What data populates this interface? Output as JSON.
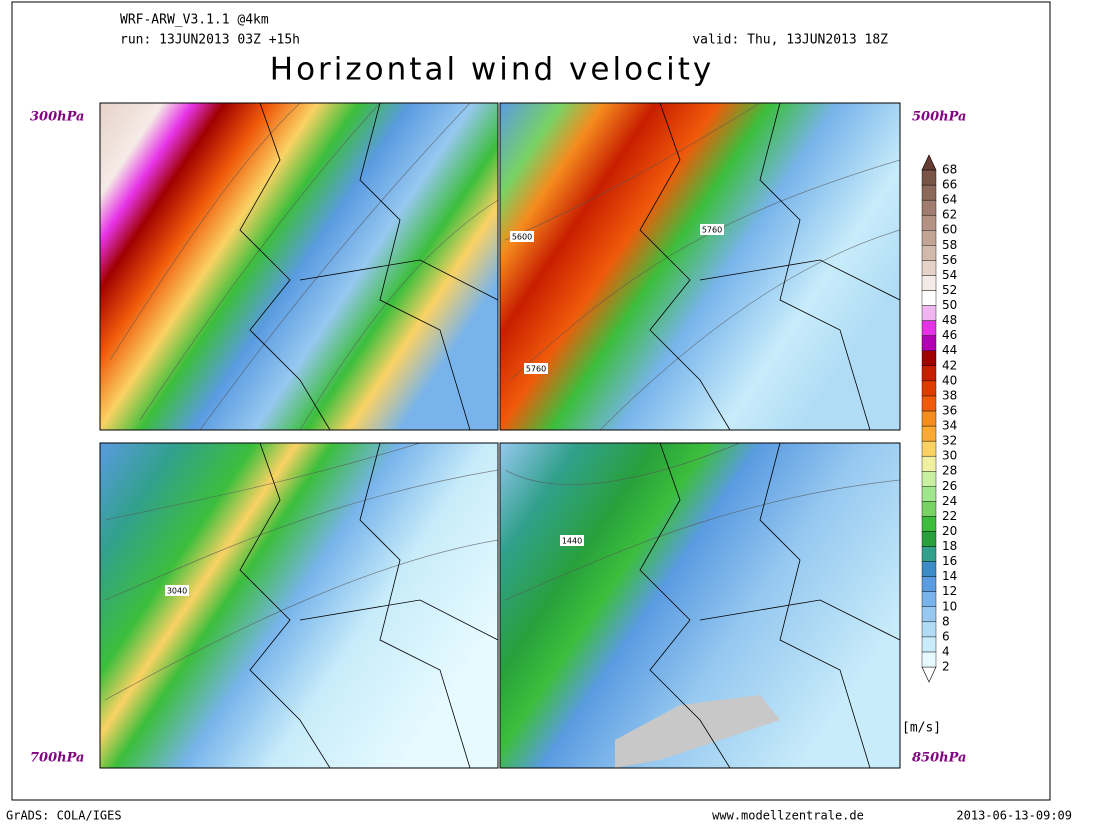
{
  "header": {
    "model": "WRF-ARW_V3.1.1 @4km",
    "run": "run: 13JUN2013 03Z +15h",
    "valid": "valid: Thu, 13JUN2013 18Z",
    "title": "Horizontal wind velocity"
  },
  "panels": [
    {
      "level": "300hPa",
      "contour_labels": []
    },
    {
      "level": "500hPa",
      "contour_labels": [
        "5600",
        "5760",
        "5760"
      ]
    },
    {
      "level": "700hPa",
      "contour_labels": [
        "3040"
      ]
    },
    {
      "level": "850hPa",
      "contour_labels": [
        "1440"
      ]
    }
  ],
  "colorbar": {
    "unit": "[m/s]",
    "levels": [
      2,
      4,
      6,
      8,
      10,
      12,
      14,
      16,
      18,
      20,
      22,
      24,
      26,
      28,
      30,
      32,
      34,
      36,
      38,
      40,
      42,
      44,
      46,
      48,
      50,
      52,
      54,
      56,
      58,
      60,
      62,
      64,
      66,
      68
    ],
    "colors": [
      "#ffffff",
      "#e6faff",
      "#c8ecfa",
      "#b0dcf5",
      "#96c8f0",
      "#78b4eb",
      "#5a9be1",
      "#3c8cc8",
      "#32a08c",
      "#28a03c",
      "#3cbe3c",
      "#78d264",
      "#a0e68c",
      "#c8f0a0",
      "#f0f0a0",
      "#fad264",
      "#faaa32",
      "#f58c1e",
      "#f05a0a",
      "#e13c00",
      "#c81e00",
      "#a00000",
      "#b400b4",
      "#e632e6",
      "#f0b4f0",
      "#ffffff",
      "#f5ebe6",
      "#e6d2c8",
      "#d2b9aa",
      "#c3a596",
      "#b49182",
      "#a07d6e",
      "#8c695a",
      "#785546",
      "#643c32"
    ]
  },
  "footer": {
    "left": "GrADS: COLA/IGES",
    "center": "www.modellzentrale.de",
    "right": "2013-06-13-09:09"
  }
}
